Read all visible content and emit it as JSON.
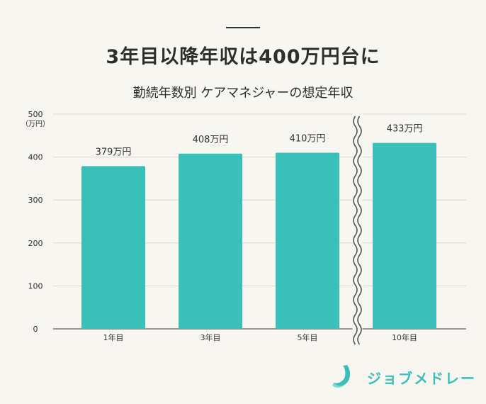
{
  "header": {
    "title": "3年目以降年収は400万円台に",
    "subtitle": "勤続年数別 ケアマネジャーの想定年収"
  },
  "chart_data": {
    "type": "bar",
    "title": "勤続年数別 ケアマネジャーの想定年収",
    "unit_label": "（万円）",
    "categories": [
      "1年目",
      "3年目",
      "5年目",
      "10年目"
    ],
    "values": [
      379,
      408,
      410,
      433
    ],
    "value_labels": [
      "379万円",
      "408万円",
      "410万円",
      "433万円"
    ],
    "yticks": [
      "0",
      "100",
      "200",
      "300",
      "400",
      "500"
    ],
    "ylim": [
      0,
      500
    ],
    "grid": true,
    "axis_break_between": [
      "5年目",
      "10年目"
    ],
    "bar_color": "#3bbfb9"
  },
  "logo": {
    "text": "ジョブメドレー",
    "icon": "jobmedley-logo-icon",
    "color": "#3bbfb9"
  }
}
